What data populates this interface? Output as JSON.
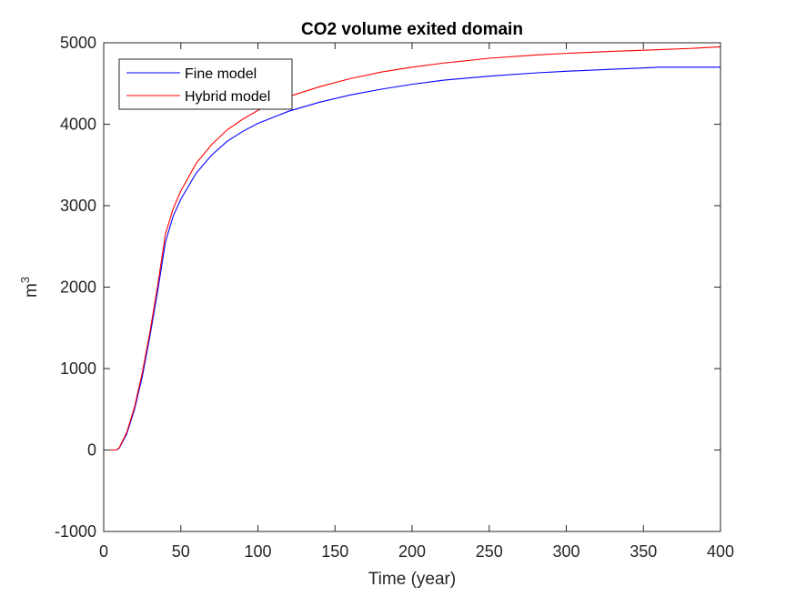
{
  "chart_data": {
    "type": "line",
    "title": "CO2 volume exited domain",
    "xlabel": "Time (year)",
    "ylabel_base": "m",
    "ylabel_sup": "3",
    "xlim": [
      0,
      400
    ],
    "ylim": [
      -1000,
      5000
    ],
    "xticks": [
      0,
      50,
      100,
      150,
      200,
      250,
      300,
      350,
      400
    ],
    "yticks": [
      -1000,
      0,
      1000,
      2000,
      3000,
      4000,
      5000
    ],
    "grid": false,
    "legend_position": "top-left",
    "series": [
      {
        "name": "Fine model",
        "color": "#0000ff",
        "x": [
          0,
          5,
          8,
          10,
          15,
          20,
          25,
          30,
          35,
          40,
          45,
          50,
          60,
          70,
          80,
          90,
          100,
          120,
          140,
          160,
          180,
          200,
          220,
          250,
          280,
          300,
          330,
          355,
          360,
          380,
          400
        ],
        "y": [
          0,
          0,
          0,
          20,
          200,
          500,
          900,
          1400,
          1950,
          2550,
          2870,
          3080,
          3400,
          3620,
          3790,
          3910,
          4010,
          4160,
          4270,
          4360,
          4430,
          4490,
          4540,
          4590,
          4630,
          4650,
          4675,
          4695,
          4700,
          4700,
          4700
        ]
      },
      {
        "name": "Hybrid model",
        "color": "#ff0000",
        "x": [
          0,
          5,
          8,
          10,
          15,
          20,
          25,
          30,
          35,
          40,
          45,
          50,
          60,
          70,
          80,
          90,
          100,
          120,
          140,
          160,
          180,
          200,
          220,
          250,
          280,
          300,
          330,
          360,
          380,
          400
        ],
        "y": [
          0,
          0,
          0,
          25,
          220,
          530,
          950,
          1450,
          2020,
          2650,
          2960,
          3180,
          3520,
          3750,
          3930,
          4060,
          4170,
          4340,
          4460,
          4560,
          4640,
          4700,
          4750,
          4810,
          4850,
          4870,
          4895,
          4915,
          4930,
          4950
        ]
      }
    ]
  }
}
